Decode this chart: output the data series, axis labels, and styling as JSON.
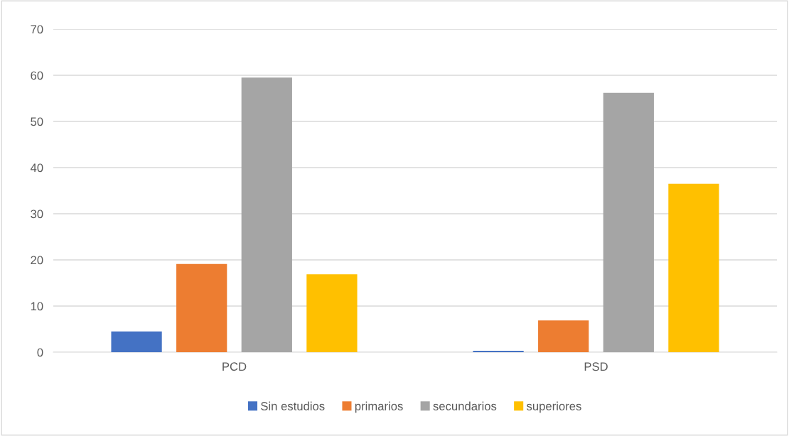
{
  "chart_data": {
    "type": "bar",
    "categories": [
      "PCD",
      "PSD"
    ],
    "series": [
      {
        "name": "Sin estudios",
        "color": "#4472c4",
        "values": [
          4.5,
          0.3
        ]
      },
      {
        "name": "primarios",
        "color": "#ed7d31",
        "values": [
          19.1,
          6.9
        ]
      },
      {
        "name": "secundarios",
        "color": "#a5a5a5",
        "values": [
          59.5,
          56.2
        ]
      },
      {
        "name": "superiores",
        "color": "#ffc000",
        "values": [
          16.9,
          36.5
        ]
      }
    ],
    "ylim": [
      0,
      70
    ],
    "yticks": [
      0,
      10,
      20,
      30,
      40,
      50,
      60,
      70
    ],
    "grid": "y",
    "legend": "bottom"
  }
}
